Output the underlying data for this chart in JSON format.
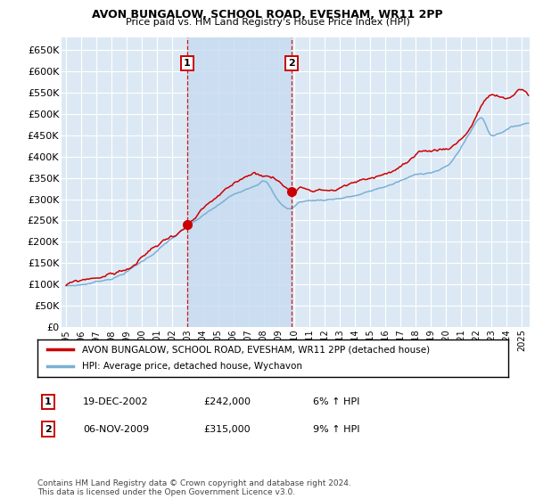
{
  "title": "AVON BUNGALOW, SCHOOL ROAD, EVESHAM, WR11 2PP",
  "subtitle": "Price paid vs. HM Land Registry's House Price Index (HPI)",
  "ylabel_ticks": [
    "£0",
    "£50K",
    "£100K",
    "£150K",
    "£200K",
    "£250K",
    "£300K",
    "£350K",
    "£400K",
    "£450K",
    "£500K",
    "£550K",
    "£600K",
    "£650K"
  ],
  "ytick_vals": [
    0,
    50000,
    100000,
    150000,
    200000,
    250000,
    300000,
    350000,
    400000,
    450000,
    500000,
    550000,
    600000,
    650000
  ],
  "ylim": [
    0,
    680000
  ],
  "xlim_start": 1994.7,
  "xlim_end": 2025.5,
  "background_color": "#dce9f5",
  "grid_color": "#ffffff",
  "red_line_color": "#cc0000",
  "blue_line_color": "#7ab0d4",
  "shade_color": "#c8dcf0",
  "vline_color": "#cc0000",
  "purchase1_x": 2002.97,
  "purchase1_y": 242000,
  "purchase1_label": "1",
  "purchase1_date": "19-DEC-2002",
  "purchase1_price": "£242,000",
  "purchase1_hpi": "6% ↑ HPI",
  "purchase2_x": 2009.85,
  "purchase2_y": 315000,
  "purchase2_label": "2",
  "purchase2_date": "06-NOV-2009",
  "purchase2_price": "£315,000",
  "purchase2_hpi": "9% ↑ HPI",
  "legend_line1": "AVON BUNGALOW, SCHOOL ROAD, EVESHAM, WR11 2PP (detached house)",
  "legend_line2": "HPI: Average price, detached house, Wychavon",
  "footer": "Contains HM Land Registry data © Crown copyright and database right 2024.\nThis data is licensed under the Open Government Licence v3.0.",
  "xtick_years": [
    1995,
    1996,
    1997,
    1998,
    1999,
    2000,
    2001,
    2002,
    2003,
    2004,
    2005,
    2006,
    2007,
    2008,
    2009,
    2010,
    2011,
    2012,
    2013,
    2014,
    2015,
    2016,
    2017,
    2018,
    2019,
    2020,
    2021,
    2022,
    2023,
    2024,
    2025
  ]
}
